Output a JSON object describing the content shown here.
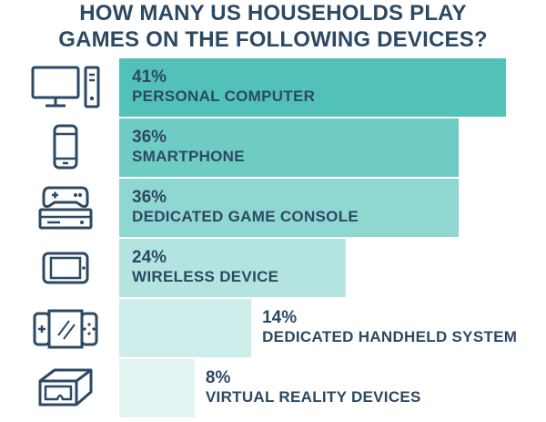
{
  "title_lines": [
    "HOW MANY US HOUSEHOLDS PLAY",
    "GAMES ON THE FOLLOWING DEVICES?"
  ],
  "chart_data": {
    "type": "bar",
    "orientation": "horizontal",
    "title": "HOW MANY US HOUSEHOLDS PLAY GAMES ON THE FOLLOWING DEVICES?",
    "categories": [
      "PERSONAL COMPUTER",
      "SMARTPHONE",
      "DEDICATED GAME CONSOLE",
      "WIRELESS DEVICE",
      "DEDICATED HANDHELD SYSTEM",
      "VIRTUAL REALITY DEVICES"
    ],
    "values": [
      41,
      36,
      36,
      24,
      14,
      8
    ],
    "value_labels": [
      "41%",
      "36%",
      "36%",
      "24%",
      "14%",
      "8%"
    ],
    "icons": [
      "desktop-computer-icon",
      "smartphone-icon",
      "game-console-icon",
      "tablet-icon",
      "handheld-console-icon",
      "vr-headset-icon"
    ],
    "bar_colors": [
      "#52c2b9",
      "#6fccc4",
      "#8fd7d1",
      "#b3e4e0",
      "#cdeeeb",
      "#e3f4f2"
    ],
    "label_color": "#2c4964",
    "icon_color": "#2c4964",
    "grid": false,
    "legend": "none"
  }
}
